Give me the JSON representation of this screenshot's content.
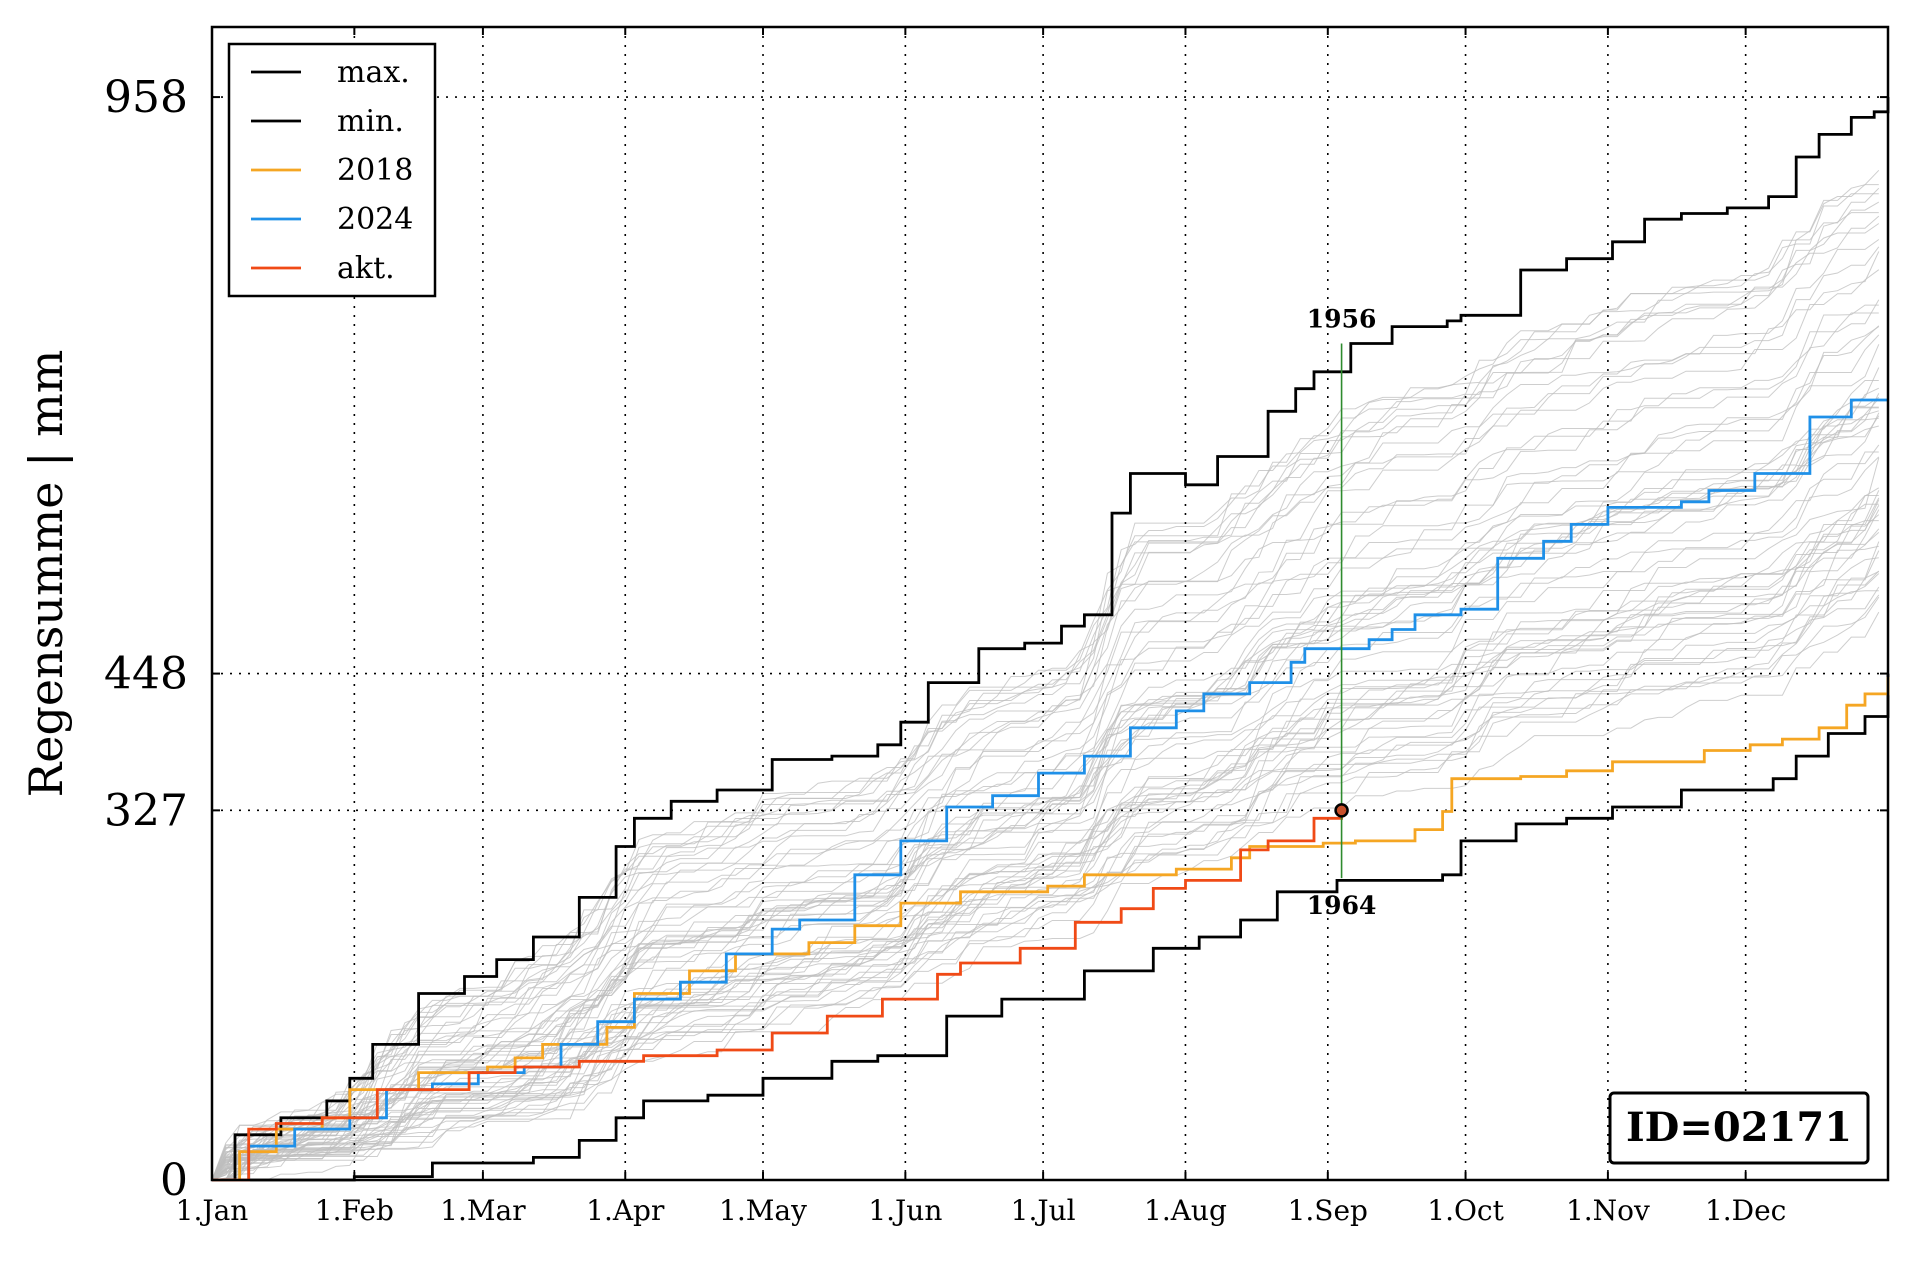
{
  "chart_data": {
    "type": "line",
    "title": "",
    "xlabel": "",
    "ylabel": "Regensumme | mm",
    "id_label": "ID=02171",
    "x_domain_days": [
      0,
      365
    ],
    "ylim": [
      0,
      1020
    ],
    "grid": "dotted",
    "legend_position": "top-left",
    "x_ticks": [
      {
        "day": 0,
        "label": "1.Jan"
      },
      {
        "day": 31,
        "label": "1.Feb"
      },
      {
        "day": 59,
        "label": "1.Mar"
      },
      {
        "day": 90,
        "label": "1.Apr"
      },
      {
        "day": 120,
        "label": "1.May"
      },
      {
        "day": 151,
        "label": "1.Jun"
      },
      {
        "day": 181,
        "label": "1.Jul"
      },
      {
        "day": 212,
        "label": "1.Aug"
      },
      {
        "day": 243,
        "label": "1.Sep"
      },
      {
        "day": 273,
        "label": "1.Oct"
      },
      {
        "day": 304,
        "label": "1.Nov"
      },
      {
        "day": 334,
        "label": "1.Dec"
      }
    ],
    "y_ticks": [
      {
        "value": 0,
        "label": "0"
      },
      {
        "value": 327,
        "label": "327"
      },
      {
        "value": 448,
        "label": "448"
      },
      {
        "value": 958,
        "label": "958"
      }
    ],
    "series": [
      {
        "name": "max.",
        "color": "#000000",
        "points": [
          [
            0,
            0
          ],
          [
            5,
            40
          ],
          [
            15,
            55
          ],
          [
            25,
            70
          ],
          [
            30,
            90
          ],
          [
            35,
            120
          ],
          [
            45,
            165
          ],
          [
            55,
            180
          ],
          [
            62,
            195
          ],
          [
            70,
            215
          ],
          [
            80,
            250
          ],
          [
            88,
            295
          ],
          [
            92,
            320
          ],
          [
            100,
            335
          ],
          [
            110,
            345
          ],
          [
            122,
            372
          ],
          [
            135,
            375
          ],
          [
            145,
            385
          ],
          [
            150,
            405
          ],
          [
            156,
            440
          ],
          [
            167,
            470
          ],
          [
            177,
            475
          ],
          [
            185,
            490
          ],
          [
            190,
            500
          ],
          [
            196,
            590
          ],
          [
            200,
            625
          ],
          [
            210,
            625
          ],
          [
            212,
            615
          ],
          [
            219,
            640
          ],
          [
            230,
            680
          ],
          [
            236,
            700
          ],
          [
            240,
            715
          ],
          [
            248,
            740
          ],
          [
            257,
            755
          ],
          [
            269,
            760
          ],
          [
            272,
            765
          ],
          [
            285,
            805
          ],
          [
            295,
            815
          ],
          [
            305,
            830
          ],
          [
            312,
            850
          ],
          [
            320,
            855
          ],
          [
            330,
            860
          ],
          [
            339,
            870
          ],
          [
            345,
            905
          ],
          [
            350,
            925
          ],
          [
            357,
            940
          ],
          [
            362,
            945
          ],
          [
            365,
            958
          ]
        ]
      },
      {
        "name": "min.",
        "color": "#000000",
        "points": [
          [
            0,
            0
          ],
          [
            21,
            0
          ],
          [
            28,
            0
          ],
          [
            31,
            3
          ],
          [
            38,
            3
          ],
          [
            48,
            15
          ],
          [
            60,
            15
          ],
          [
            70,
            20
          ],
          [
            80,
            35
          ],
          [
            88,
            55
          ],
          [
            94,
            70
          ],
          [
            108,
            75
          ],
          [
            120,
            90
          ],
          [
            135,
            105
          ],
          [
            145,
            110
          ],
          [
            160,
            145
          ],
          [
            172,
            160
          ],
          [
            190,
            185
          ],
          [
            205,
            205
          ],
          [
            215,
            215
          ],
          [
            224,
            230
          ],
          [
            232,
            255
          ],
          [
            245,
            265
          ],
          [
            268,
            270
          ],
          [
            272,
            300
          ],
          [
            284,
            315
          ],
          [
            295,
            320
          ],
          [
            305,
            330
          ],
          [
            320,
            345
          ],
          [
            340,
            355
          ],
          [
            345,
            375
          ],
          [
            352,
            395
          ],
          [
            360,
            410
          ],
          [
            365,
            448
          ]
        ]
      },
      {
        "name": "2018",
        "color": "#f5a623",
        "points": [
          [
            0,
            0
          ],
          [
            6,
            25
          ],
          [
            14,
            45
          ],
          [
            24,
            55
          ],
          [
            30,
            80
          ],
          [
            45,
            95
          ],
          [
            60,
            100
          ],
          [
            66,
            108
          ],
          [
            72,
            120
          ],
          [
            86,
            135
          ],
          [
            92,
            165
          ],
          [
            104,
            185
          ],
          [
            114,
            200
          ],
          [
            130,
            210
          ],
          [
            140,
            225
          ],
          [
            150,
            245
          ],
          [
            163,
            255
          ],
          [
            182,
            260
          ],
          [
            190,
            270
          ],
          [
            210,
            275
          ],
          [
            222,
            285
          ],
          [
            226,
            295
          ],
          [
            242,
            298
          ],
          [
            249,
            300
          ],
          [
            262,
            310
          ],
          [
            268,
            326
          ],
          [
            270,
            355
          ],
          [
            285,
            357
          ],
          [
            295,
            362
          ],
          [
            305,
            370
          ],
          [
            325,
            380
          ],
          [
            335,
            385
          ],
          [
            342,
            390
          ],
          [
            350,
            400
          ],
          [
            356,
            420
          ],
          [
            360,
            430
          ],
          [
            365,
            445
          ]
        ]
      },
      {
        "name": "2024",
        "color": "#1f90e8",
        "points": [
          [
            0,
            0
          ],
          [
            8,
            30
          ],
          [
            18,
            45
          ],
          [
            30,
            55
          ],
          [
            38,
            80
          ],
          [
            48,
            85
          ],
          [
            58,
            95
          ],
          [
            68,
            100
          ],
          [
            76,
            120
          ],
          [
            84,
            140
          ],
          [
            92,
            160
          ],
          [
            102,
            175
          ],
          [
            112,
            200
          ],
          [
            122,
            222
          ],
          [
            128,
            230
          ],
          [
            140,
            270
          ],
          [
            150,
            300
          ],
          [
            160,
            330
          ],
          [
            170,
            340
          ],
          [
            180,
            360
          ],
          [
            190,
            375
          ],
          [
            200,
            400
          ],
          [
            210,
            415
          ],
          [
            216,
            430
          ],
          [
            226,
            440
          ],
          [
            235,
            458
          ],
          [
            238,
            470
          ],
          [
            252,
            478
          ],
          [
            257,
            487
          ],
          [
            262,
            500
          ],
          [
            272,
            505
          ],
          [
            280,
            550
          ],
          [
            290,
            565
          ],
          [
            296,
            580
          ],
          [
            304,
            595
          ],
          [
            316,
            595
          ],
          [
            320,
            600
          ],
          [
            326,
            610
          ],
          [
            336,
            625
          ],
          [
            348,
            675
          ],
          [
            357,
            690
          ],
          [
            365,
            690
          ]
        ]
      },
      {
        "name": "akt.",
        "color": "#f04a16",
        "points": [
          [
            0,
            0
          ],
          [
            8,
            45
          ],
          [
            14,
            50
          ],
          [
            24,
            55
          ],
          [
            36,
            80
          ],
          [
            56,
            95
          ],
          [
            66,
            100
          ],
          [
            80,
            105
          ],
          [
            94,
            110
          ],
          [
            110,
            115
          ],
          [
            122,
            130
          ],
          [
            134,
            145
          ],
          [
            146,
            160
          ],
          [
            158,
            182
          ],
          [
            163,
            192
          ],
          [
            176,
            205
          ],
          [
            188,
            228
          ],
          [
            198,
            240
          ],
          [
            205,
            258
          ],
          [
            212,
            265
          ],
          [
            224,
            292
          ],
          [
            230,
            300
          ],
          [
            240,
            320
          ],
          [
            246,
            327
          ]
        ]
      }
    ],
    "background_series_note": "",
    "background_lines_count": 60,
    "marker": {
      "day": 246,
      "value": 327
    },
    "annotations": [
      {
        "label": "1956",
        "day": 246,
        "value": 740,
        "series": "max."
      },
      {
        "label": "1964",
        "day": 246,
        "value": 267,
        "series": "min."
      }
    ]
  }
}
